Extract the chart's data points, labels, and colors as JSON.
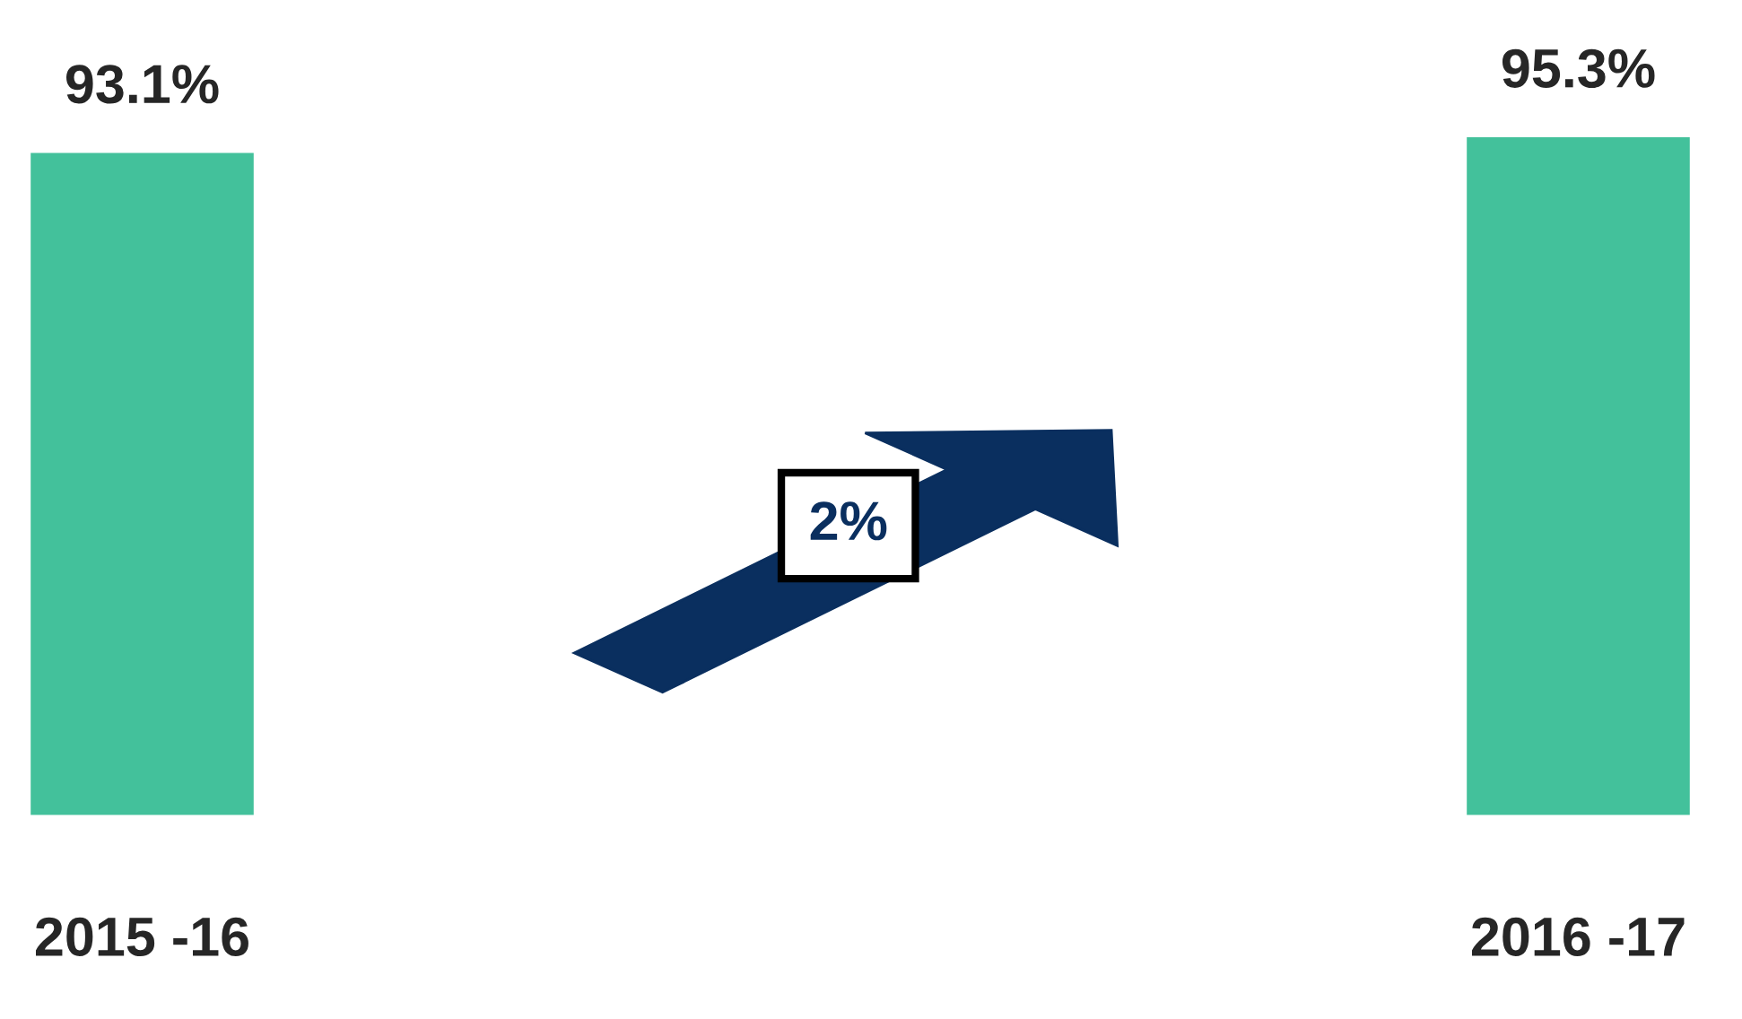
{
  "chart_data": {
    "type": "bar",
    "categories": [
      "2015 -16",
      "2016 -17"
    ],
    "values": [
      93.1,
      95.3
    ],
    "color": "#43c19b",
    "data_labels": true,
    "value_labels": [
      "93.1%",
      "95.3%"
    ],
    "tick_labels": "x",
    "grid": false,
    "legend": false,
    "annotations": [
      "2%"
    ]
  }
}
